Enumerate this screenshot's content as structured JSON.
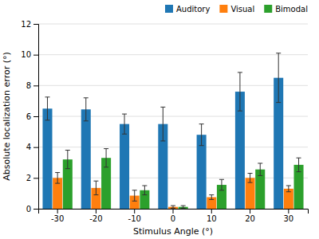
{
  "chart_data": {
    "type": "bar",
    "xlabel": "Stimulus Angle (°)",
    "ylabel": "Absolute localization error (°)",
    "categories": [
      "-30",
      "-20",
      "-10",
      "0",
      "10",
      "20",
      "30"
    ],
    "series": [
      {
        "name": "Auditory",
        "values": [
          6.5,
          6.45,
          5.5,
          5.5,
          4.8,
          7.6,
          8.5
        ],
        "errors": [
          0.75,
          0.75,
          0.65,
          1.1,
          0.7,
          1.25,
          1.6
        ]
      },
      {
        "name": "Visual",
        "values": [
          2.0,
          1.35,
          0.85,
          0.12,
          0.75,
          2.0,
          1.3
        ],
        "errors": [
          0.35,
          0.45,
          0.35,
          0.08,
          0.15,
          0.3,
          0.2
        ]
      },
      {
        "name": "Bimodal",
        "values": [
          3.2,
          3.3,
          1.2,
          0.12,
          1.55,
          2.55,
          2.85
        ],
        "errors": [
          0.6,
          0.6,
          0.3,
          0.08,
          0.35,
          0.4,
          0.45
        ]
      }
    ],
    "ylim": [
      0,
      12
    ],
    "yticks": [
      0,
      2,
      4,
      6,
      8,
      10,
      12
    ],
    "grid": true,
    "legend": "upper right"
  }
}
